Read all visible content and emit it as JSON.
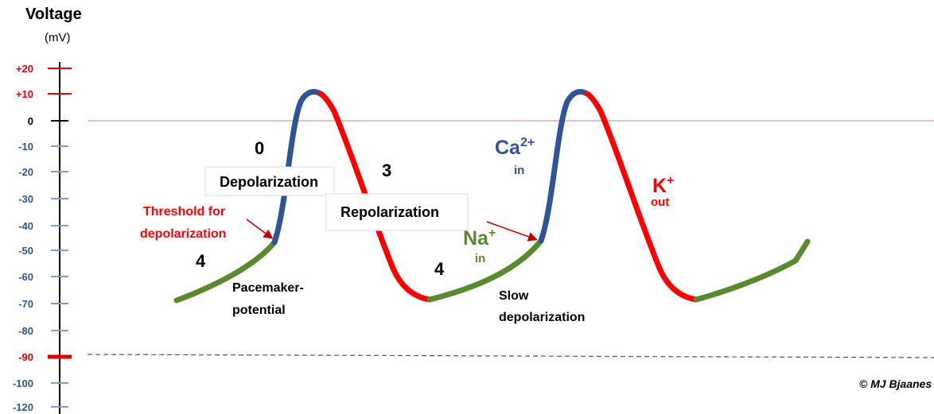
{
  "axis": {
    "title": "Voltage",
    "unit": "(mV)",
    "ticks": [
      "+20",
      "+10",
      "0",
      "-10",
      "-20",
      "-30",
      "-40",
      "-50",
      "-60",
      "-70",
      "-80",
      "-90",
      "-100",
      "-120"
    ]
  },
  "phases": {
    "phase0": "0",
    "phase3": "3",
    "phase4a": "4",
    "phase4b": "4"
  },
  "boxes": {
    "depolarization": "Depolarization",
    "repolarization": "Repolarization"
  },
  "threshold": [
    "Threshold for",
    "depolarization"
  ],
  "pacemaker": [
    "Pacemaker-",
    "potential"
  ],
  "slow": [
    "Slow",
    "depolarization"
  ],
  "ions": {
    "na": {
      "symbol": "Na",
      "charge": "+",
      "direction": "in"
    },
    "ca": {
      "symbol": "Ca",
      "charge": "2+",
      "direction": "in"
    },
    "k": {
      "symbol": "K",
      "charge": "+",
      "direction": "out"
    }
  },
  "signature": "© MJ Bjaanes"
}
